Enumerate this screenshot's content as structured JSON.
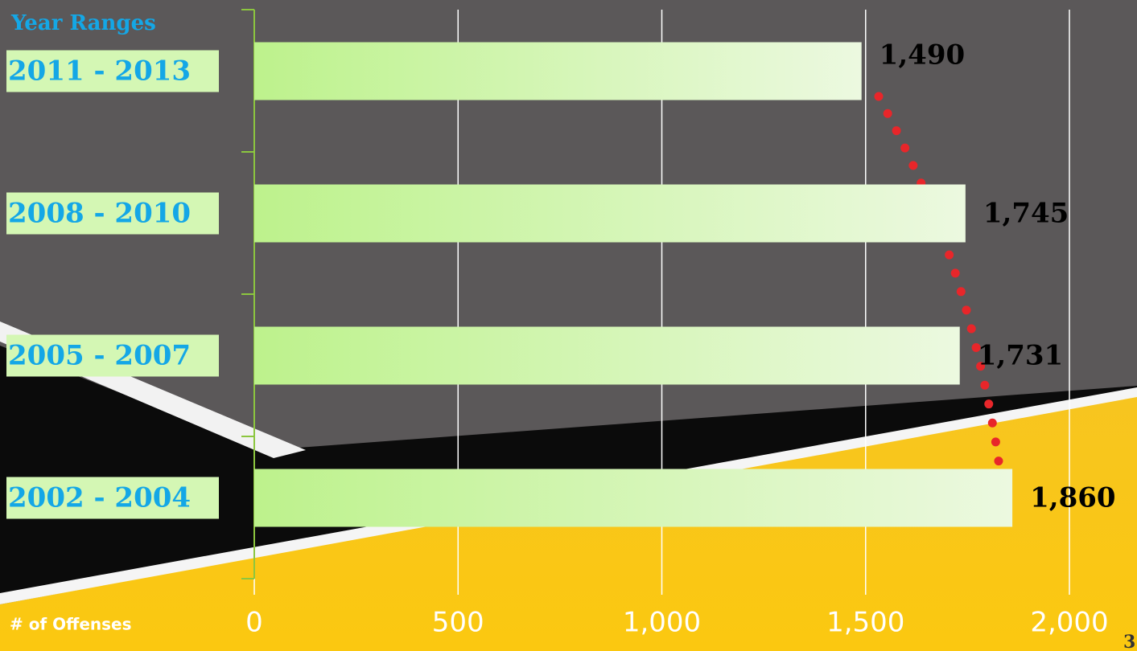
{
  "chart_data": {
    "type": "bar",
    "orientation": "horizontal",
    "y_axis_label": "Year Ranges",
    "x_axis_label": "# of Offenses",
    "categories": [
      "2011 - 2013",
      "2008 - 2010",
      "2005 - 2007",
      "2002 - 2004"
    ],
    "values": [
      1490,
      1745,
      1731,
      1860
    ],
    "value_labels": [
      "1,490",
      "1,745",
      "1,731",
      "1,860"
    ],
    "xlim": [
      0,
      2000
    ],
    "xticks": [
      0,
      500,
      {
        "value": 1000,
        "label": "1,000"
      },
      {
        "value": 1500,
        "label": "1,500"
      },
      {
        "value": 2000,
        "label": "2,000"
      }
    ],
    "grid": true
  },
  "slide_number": "3"
}
